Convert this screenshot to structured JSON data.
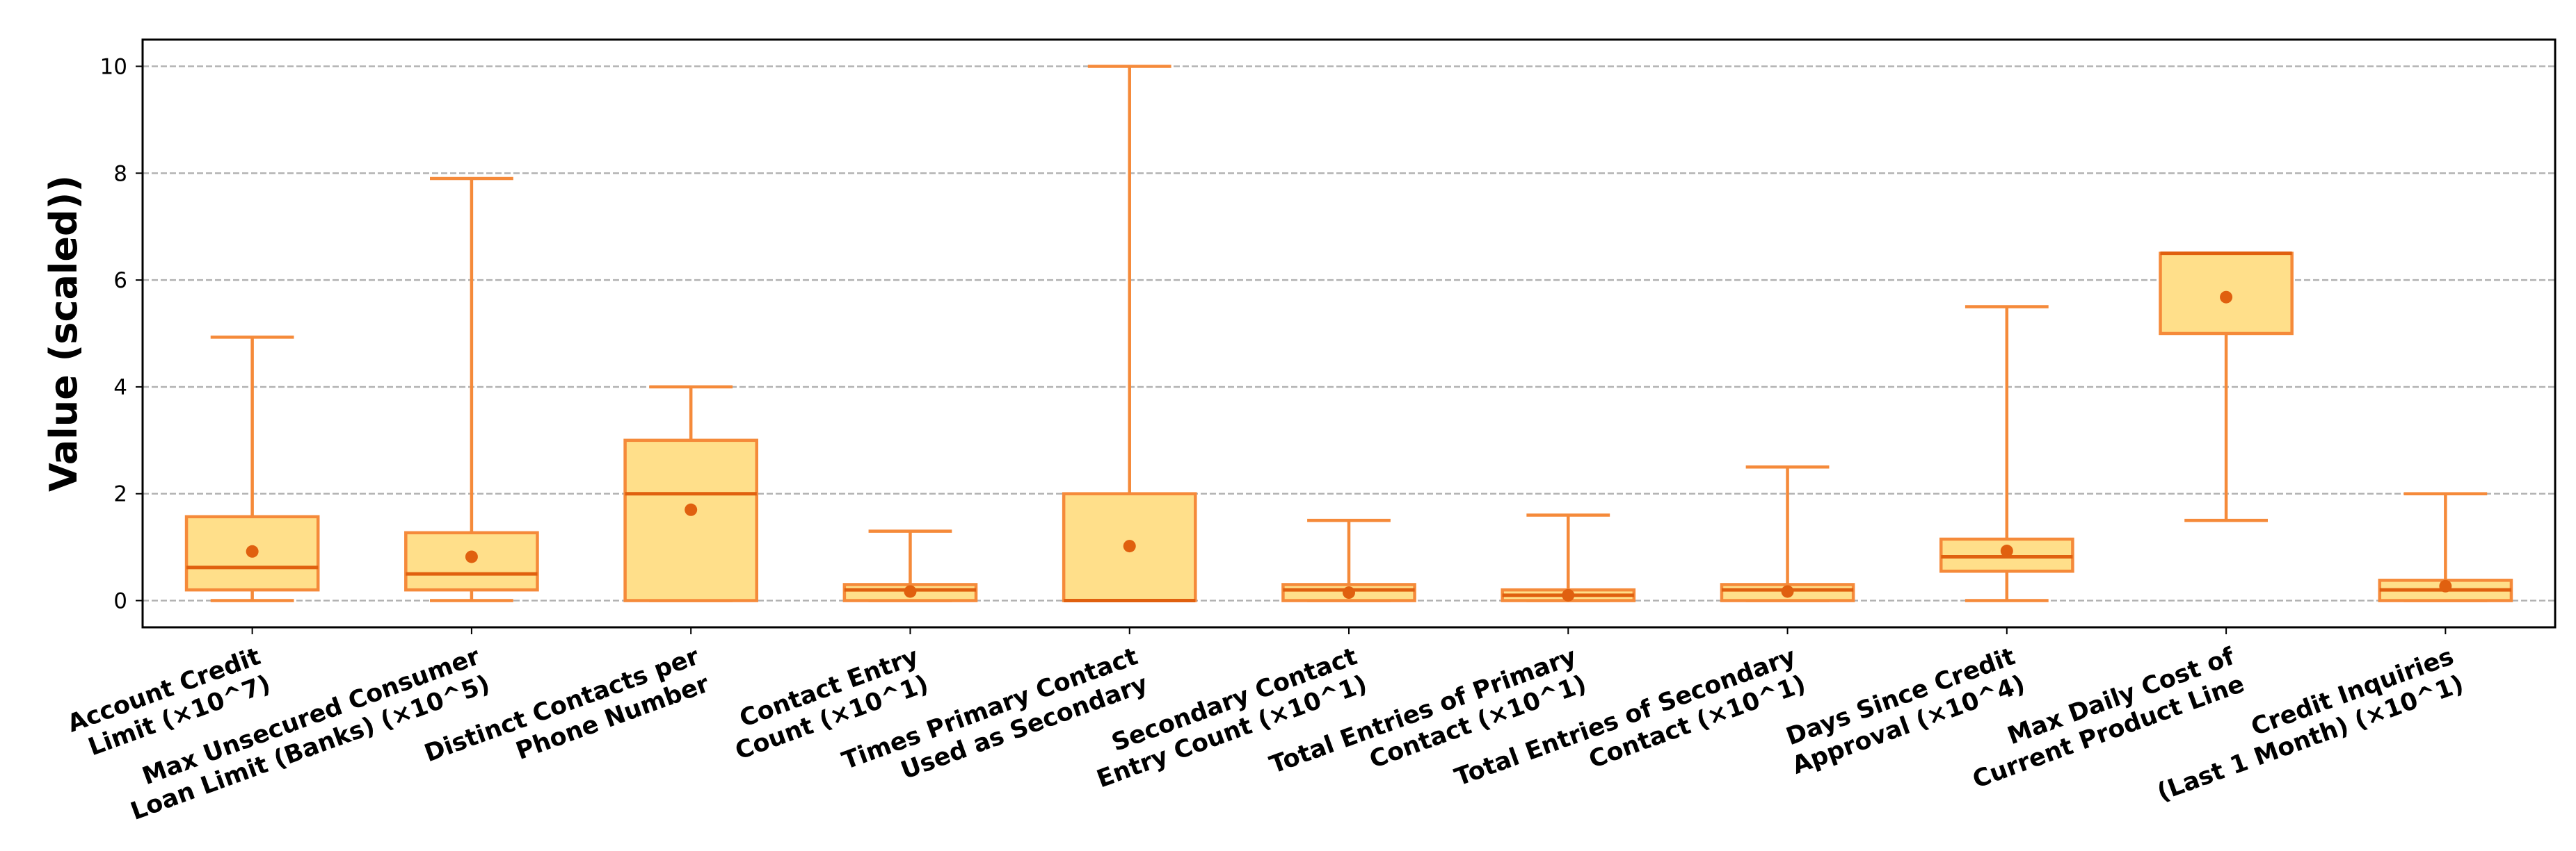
{
  "chart_data": {
    "type": "box",
    "y_label": "Value (scaled))",
    "categories": [
      [
        "Account Credit",
        "Limit (×10^7)"
      ],
      [
        "Max Unsecured Consumer",
        "Loan Limit (Banks) (×10^5)"
      ],
      [
        "Distinct Contacts per",
        "Phone Number"
      ],
      [
        "Contact Entry",
        "Count (×10^1)"
      ],
      [
        "Times Primary Contact",
        "Used as Secondary"
      ],
      [
        "Secondary Contact",
        "Entry Count (×10^1)"
      ],
      [
        "Total Entries of Primary",
        "Contact (×10^1)"
      ],
      [
        "Total Entries of Secondary",
        "Contact (×10^1)"
      ],
      [
        "Days Since Credit",
        "Approval (×10^4)"
      ],
      [
        "Max Daily Cost of",
        "Current Product Line"
      ],
      [
        "Credit Inquiries",
        "(Last 1 Month) (×10^1)"
      ]
    ],
    "boxes": [
      {
        "whislo": 0,
        "q1": 0.2,
        "med": 0.62,
        "q3": 1.57,
        "whishi": 4.93,
        "mean": 0.92
      },
      {
        "whislo": 0,
        "q1": 0.2,
        "med": 0.5,
        "q3": 1.27,
        "whishi": 7.9,
        "mean": 0.82
      },
      {
        "whislo": 0,
        "q1": 0,
        "med": 2,
        "q3": 3,
        "whishi": 4,
        "mean": 1.7
      },
      {
        "whislo": 0,
        "q1": 0,
        "med": 0.2,
        "q3": 0.3,
        "whishi": 1.3,
        "mean": 0.17
      },
      {
        "whislo": 0,
        "q1": 0,
        "med": 0,
        "q3": 2,
        "whishi": 10,
        "mean": 1.02
      },
      {
        "whislo": 0,
        "q1": 0,
        "med": 0.2,
        "q3": 0.3,
        "whishi": 1.5,
        "mean": 0.15
      },
      {
        "whislo": 0,
        "q1": 0,
        "med": 0.1,
        "q3": 0.2,
        "whishi": 1.6,
        "mean": 0.1
      },
      {
        "whislo": 0,
        "q1": 0,
        "med": 0.2,
        "q3": 0.3,
        "whishi": 2.5,
        "mean": 0.17
      },
      {
        "whislo": 0,
        "q1": 0.55,
        "med": 0.82,
        "q3": 1.15,
        "whishi": 5.5,
        "mean": 0.93
      },
      {
        "whislo": 1.5,
        "q1": 5.0,
        "med": 6.5,
        "q3": 6.5,
        "whishi": 6.5,
        "mean": 5.68
      },
      {
        "whislo": 0,
        "q1": 0,
        "med": 0.2,
        "q3": 0.38,
        "whishi": 2.0,
        "mean": 0.27
      }
    ],
    "box_color": "#ffdf8a",
    "edge_color": "#f58a3a",
    "median_color": "#e0600f",
    "mean_color": "#e0600f",
    "ylim": [
      -0.5,
      10.5
    ],
    "yticks": [
      0,
      2,
      4,
      6,
      8,
      10
    ],
    "grid": true
  }
}
